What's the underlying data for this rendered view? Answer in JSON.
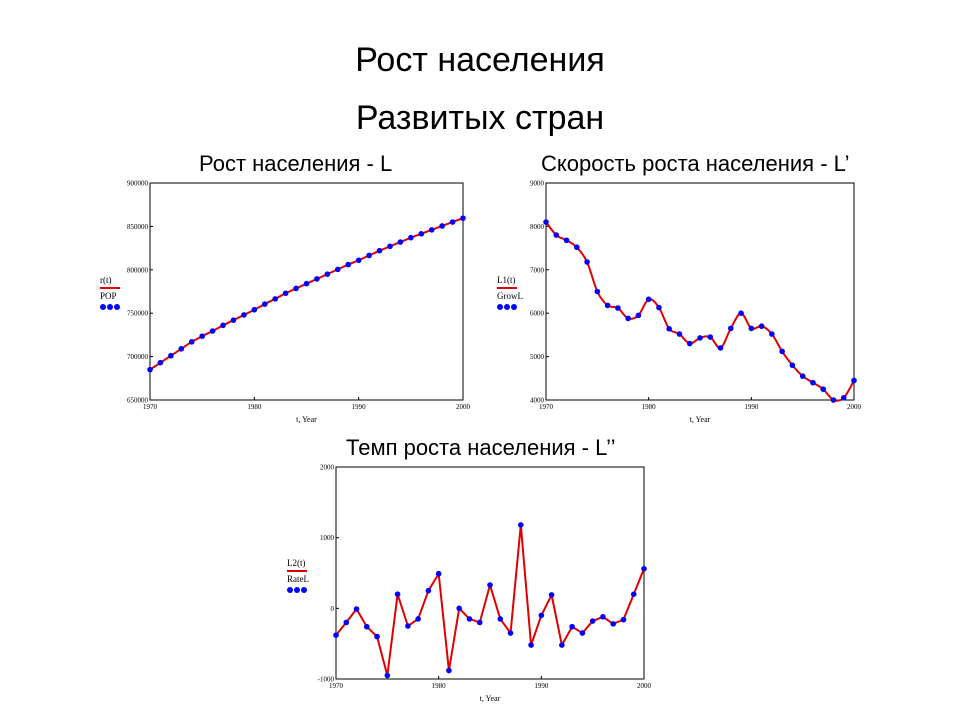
{
  "slide": {
    "title_line1": "Рост населения",
    "title_line2": "Развитых стран"
  },
  "colors": {
    "line": "#e00000",
    "points": "#0000ff",
    "frame": "#000000"
  },
  "chart_data": [
    {
      "type": "line",
      "title": "Рост населения - L",
      "xlabel": "t, Year",
      "xlim": [
        1970,
        2000
      ],
      "ylim": [
        650000,
        900000
      ],
      "xticks": [
        1970,
        1980,
        1990,
        2000
      ],
      "yticks": [
        650000,
        700000,
        750000,
        800000,
        850000,
        900000
      ],
      "legend": {
        "placement": "left",
        "line_label": "r(t)",
        "point_label": "POP"
      },
      "grid": false,
      "series": [
        {
          "name": "POP",
          "x": [
            1970,
            1971,
            1972,
            1973,
            1974,
            1975,
            1976,
            1977,
            1978,
            1979,
            1980,
            1981,
            1982,
            1983,
            1984,
            1985,
            1986,
            1987,
            1988,
            1989,
            1990,
            1991,
            1992,
            1993,
            1994,
            1995,
            1996,
            1997,
            1998,
            1999,
            2000
          ],
          "values": [
            685000,
            693000,
            701000,
            709000,
            717000,
            723500,
            729500,
            736000,
            742000,
            748000,
            754000,
            760500,
            766500,
            773000,
            778500,
            784000,
            789500,
            795000,
            800500,
            806000,
            811000,
            816500,
            822000,
            827000,
            832000,
            837000,
            841500,
            846000,
            850500,
            855000,
            859500
          ]
        }
      ]
    },
    {
      "type": "line",
      "title": "Скорость роста населения - L’",
      "xlabel": "t, Year",
      "xlim": [
        1970,
        2000
      ],
      "ylim": [
        4000,
        9000
      ],
      "xticks": [
        1970,
        1980,
        1990,
        2000
      ],
      "yticks": [
        4000,
        5000,
        6000,
        7000,
        8000,
        9000
      ],
      "legend": {
        "placement": "left",
        "line_label": "L1(t)",
        "point_label": "GrowL"
      },
      "grid": false,
      "series": [
        {
          "name": "GrowL",
          "x": [
            1970,
            1971,
            1972,
            1973,
            1974,
            1975,
            1976,
            1977,
            1978,
            1979,
            1980,
            1981,
            1982,
            1983,
            1984,
            1985,
            1986,
            1987,
            1988,
            1989,
            1990,
            1991,
            1992,
            1993,
            1994,
            1995,
            1996,
            1997,
            1998,
            1999,
            2000
          ],
          "values": [
            8100,
            7800,
            7680,
            7520,
            7180,
            6500,
            6180,
            6120,
            5880,
            5950,
            6320,
            6130,
            5640,
            5520,
            5300,
            5430,
            5450,
            5200,
            5650,
            6000,
            5650,
            5700,
            5520,
            5120,
            4800,
            4550,
            4400,
            4250,
            4000,
            4050,
            4450
          ]
        }
      ]
    },
    {
      "type": "line",
      "title": "Темп роста населения - L’’",
      "xlabel": "t, Year",
      "xlim": [
        1970,
        2000
      ],
      "ylim": [
        -1000,
        2000
      ],
      "xticks": [
        1970,
        1980,
        1990,
        2000
      ],
      "yticks": [
        -1000,
        0,
        1000,
        2000
      ],
      "legend": {
        "placement": "left",
        "line_label": "L2(t)",
        "point_label": "RateL"
      },
      "grid": false,
      "series": [
        {
          "name": "RateL",
          "x": [
            1970,
            1971,
            1972,
            1973,
            1974,
            1975,
            1976,
            1977,
            1978,
            1979,
            1980,
            1981,
            1982,
            1983,
            1984,
            1985,
            1986,
            1987,
            1988,
            1989,
            1990,
            1991,
            1992,
            1993,
            1994,
            1995,
            1996,
            1997,
            1998,
            1999,
            2000
          ],
          "values": [
            -380,
            -200,
            -10,
            -260,
            -400,
            -950,
            200,
            -250,
            -150,
            250,
            490,
            -880,
            0,
            -150,
            -200,
            330,
            -150,
            -350,
            1180,
            -520,
            -100,
            190,
            -520,
            -260,
            -350,
            -180,
            -120,
            -220,
            -160,
            200,
            560
          ]
        }
      ]
    }
  ]
}
